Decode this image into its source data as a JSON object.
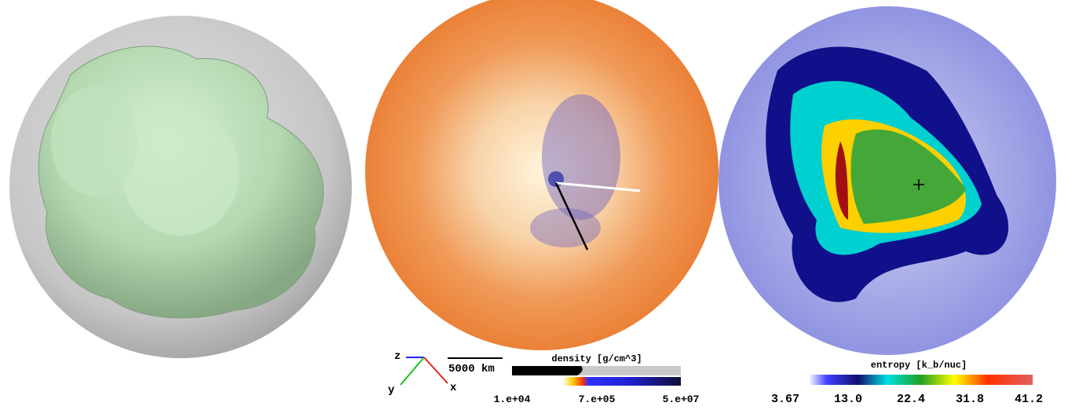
{
  "triad": {
    "z": "z",
    "y": "y",
    "x": "x"
  },
  "scale_bar": "5000 km",
  "density_colorbar": {
    "title": "density [g/cm^3]",
    "ticks": [
      "1.e+04",
      "7.e+05",
      "5.e+07"
    ]
  },
  "entropy_colorbar": {
    "title": "entropy [k_b/nuc]",
    "ticks": [
      "3.67",
      "13.0",
      "22.4",
      "31.8",
      "41.2"
    ]
  }
}
